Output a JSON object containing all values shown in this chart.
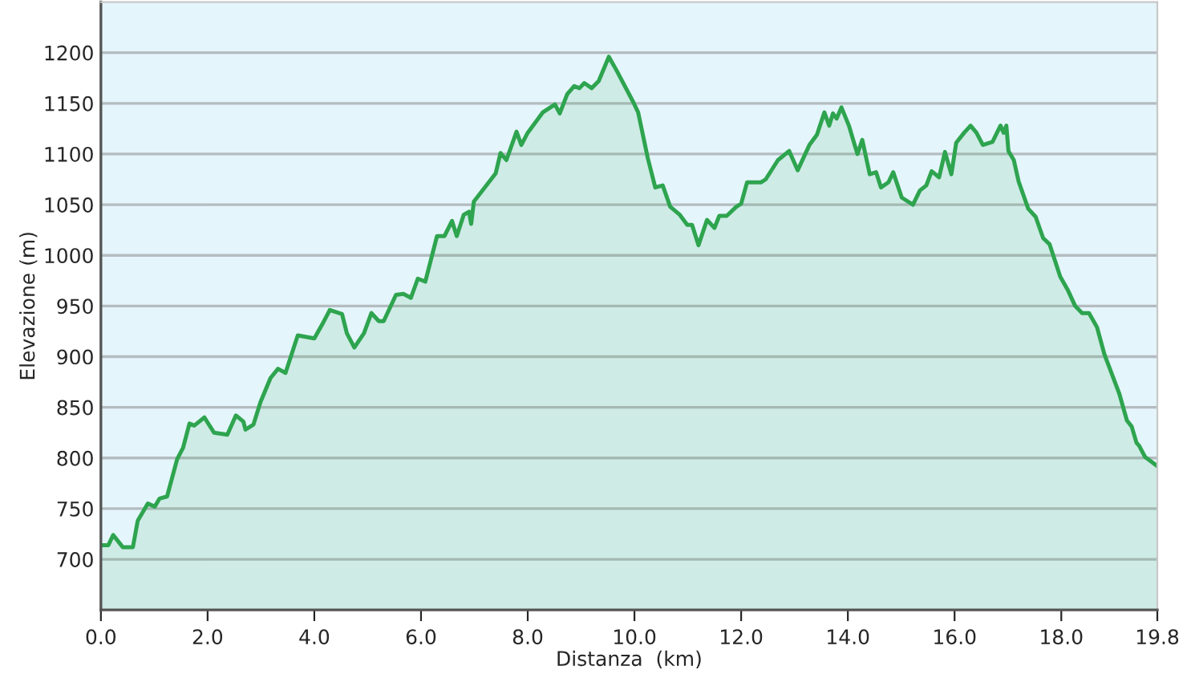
{
  "chart_data": {
    "type": "area",
    "xlabel": "Distanza  (km)",
    "ylabel": "Elevazione (m)",
    "series": [
      {
        "color": "#2ea44f",
        "x": [
          0,
          0.14,
          0.23,
          0.32,
          0.41,
          0.6,
          0.69,
          0.88,
          1.01,
          1.1,
          1.24,
          1.43,
          1.54,
          1.66,
          1.75,
          1.94,
          2.12,
          2.37,
          2.53,
          2.67,
          2.71,
          2.86,
          2.99,
          3.18,
          3.32,
          3.46,
          3.69,
          4.0,
          4.15,
          4.29,
          4.52,
          4.61,
          4.75,
          4.93,
          5.07,
          5.21,
          5.3,
          5.53,
          5.67,
          5.81,
          5.94,
          6.08,
          6.3,
          6.44,
          6.58,
          6.67,
          6.8,
          6.9,
          6.94,
          6.99,
          7.4,
          7.49,
          7.6,
          7.79,
          7.88,
          8.0,
          8.28,
          8.51,
          8.6,
          8.74,
          8.87,
          8.97,
          9.06,
          9.2,
          9.33,
          9.52,
          9.66,
          9.98,
          10.07,
          10.25,
          10.39,
          10.53,
          10.67,
          10.85,
          10.99,
          11.08,
          11.2,
          11.36,
          11.5,
          11.59,
          11.73,
          11.91,
          12.0,
          12.11,
          12.37,
          12.46,
          12.69,
          12.9,
          13.06,
          13.28,
          13.42,
          13.56,
          13.65,
          13.72,
          13.79,
          13.88,
          14.02,
          14.11,
          14.18,
          14.27,
          14.41,
          14.53,
          14.62,
          14.76,
          14.85,
          15.01,
          15.22,
          15.35,
          15.47,
          15.57,
          15.71,
          15.82,
          15.94,
          16.03,
          16.18,
          16.3,
          16.41,
          16.53,
          16.71,
          16.86,
          16.92,
          16.97,
          17.01,
          17.11,
          17.2,
          17.38,
          17.52,
          17.66,
          17.78,
          17.98,
          18.12,
          18.26,
          18.39,
          18.52,
          18.67,
          18.81,
          19.09,
          19.23,
          19.32,
          19.41,
          19.46,
          19.57,
          19.8
        ],
        "values": [
          714,
          714,
          724,
          718,
          712,
          712,
          738,
          755,
          752,
          760,
          762,
          799,
          810,
          834,
          832,
          840,
          825,
          823,
          842,
          836,
          828,
          833,
          855,
          879,
          888,
          884,
          921,
          918,
          932,
          946,
          942,
          923,
          909,
          923,
          943,
          935,
          935,
          961,
          962,
          958,
          977,
          974,
          1019,
          1019,
          1034,
          1019,
          1040,
          1043,
          1031,
          1053,
          1081,
          1101,
          1094,
          1122,
          1109,
          1121,
          1141,
          1149,
          1140,
          1159,
          1167,
          1165,
          1170,
          1165,
          1172,
          1196,
          1183,
          1151,
          1141,
          1096,
          1067,
          1069,
          1048,
          1040,
          1030,
          1030,
          1010,
          1035,
          1027,
          1039,
          1039,
          1048,
          1051,
          1072,
          1072,
          1075,
          1094,
          1103,
          1084,
          1109,
          1119,
          1141,
          1128,
          1140,
          1135,
          1146,
          1128,
          1112,
          1100,
          1114,
          1080,
          1082,
          1067,
          1072,
          1082,
          1057,
          1050,
          1064,
          1069,
          1083,
          1077,
          1102,
          1080,
          1111,
          1121,
          1128,
          1121,
          1109,
          1112,
          1128,
          1121,
          1128,
          1103,
          1094,
          1073,
          1046,
          1038,
          1017,
          1011,
          979,
          966,
          950,
          943,
          943,
          929,
          902,
          863,
          837,
          831,
          815,
          812,
          801,
          792
        ]
      }
    ],
    "xlim": [
      0,
      19.8
    ],
    "xticks": [
      {
        "value": 0,
        "label": "0.0"
      },
      {
        "value": 2,
        "label": "2.0"
      },
      {
        "value": 4,
        "label": "4.0"
      },
      {
        "value": 6,
        "label": "6.0"
      },
      {
        "value": 8,
        "label": "8.0"
      },
      {
        "value": 10,
        "label": "10.0"
      },
      {
        "value": 12,
        "label": "12.0"
      },
      {
        "value": 14,
        "label": "14.0"
      },
      {
        "value": 16,
        "label": "16.0"
      },
      {
        "value": 18,
        "label": "18.0"
      },
      {
        "value": 19.8,
        "label": "19.8"
      }
    ],
    "ylim": [
      650,
      1250
    ],
    "yticks": [
      700,
      750,
      800,
      850,
      900,
      950,
      1000,
      1050,
      1100,
      1150,
      1200
    ],
    "grid": "y",
    "legend": false
  }
}
